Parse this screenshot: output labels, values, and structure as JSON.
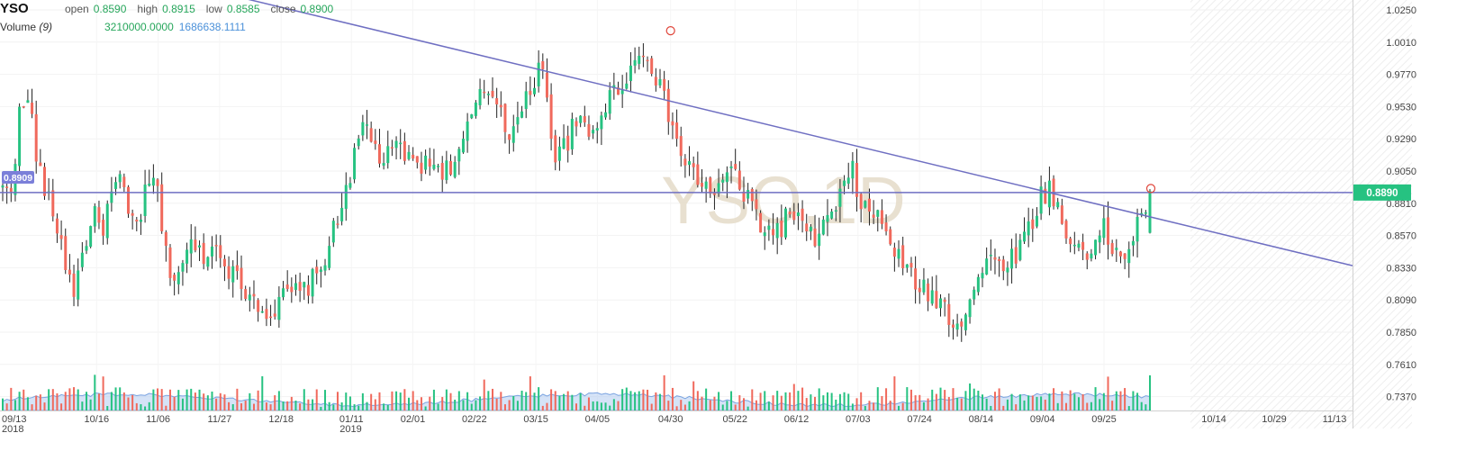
{
  "legend": {
    "symbol": "YSO",
    "open_label": "open",
    "open": "0.8590",
    "high_label": "high",
    "high": "0.8915",
    "low_label": "low",
    "low": "0.8585",
    "close_label": "close",
    "close": "0.8900",
    "volume_label": "Volume",
    "volume_period": "(9)",
    "volume_value": "3210000.0000",
    "volume_ma": "1686638.1111"
  },
  "watermark": "YSO,1D",
  "colors": {
    "up": "#26c281",
    "down": "#f0695c",
    "line": "#6f6fc2",
    "volume_area": "#b3ccf0"
  },
  "chart_data": {
    "type": "candlestick",
    "y_axis": {
      "min": 0.725,
      "max": 1.035,
      "tick_labels": [
        "1.0250",
        "1.0010",
        "0.9770",
        "0.9530",
        "0.9290",
        "0.9050",
        "0.8810",
        "0.8570",
        "0.8330",
        "0.8090",
        "0.7850",
        "0.7610",
        "0.7370"
      ]
    },
    "x_axis": {
      "tick_labels": [
        "09/13",
        "10/16",
        "11/06",
        "11/27",
        "12/18",
        "01/11",
        "02/01",
        "02/22",
        "03/15",
        "04/05",
        "04/30",
        "05/22",
        "06/12",
        "07/03",
        "07/24",
        "08/14",
        "09/04",
        "09/25",
        "10/14",
        "10/29",
        "11/13"
      ],
      "year_labels": [
        {
          "under": "09/13",
          "text": "2018"
        },
        {
          "under": "01/11",
          "text": "2019"
        }
      ]
    },
    "horizontal_line": {
      "value": 0.889
    },
    "trend_line": {
      "from": {
        "date": "2018-11-27",
        "price": 1.038
      },
      "to": {
        "date": "2019-11-13",
        "price": 0.8345
      },
      "markers": [
        {
          "date": "2019-04-30",
          "price": 1.0095
        },
        {
          "date": "2019-10-11",
          "price": 0.892
        }
      ]
    },
    "price_tags": [
      {
        "text": "0.8909",
        "value": 0.8909,
        "side": "left"
      },
      {
        "text": "0.8890",
        "value": 0.889,
        "side": "right"
      }
    ],
    "anchors": [
      0.89,
      0.895,
      0.955,
      0.955,
      0.905,
      0.883,
      0.865,
      0.835,
      0.815,
      0.85,
      0.872,
      0.862,
      0.886,
      0.898,
      0.868,
      0.867,
      0.892,
      0.898,
      0.842,
      0.826,
      0.838,
      0.85,
      0.843,
      0.847,
      0.849,
      0.834,
      0.822,
      0.817,
      0.809,
      0.803,
      0.798,
      0.81,
      0.815,
      0.813,
      0.822,
      0.826,
      0.85,
      0.865,
      0.895,
      0.915,
      0.942,
      0.926,
      0.912,
      0.916,
      0.925,
      0.911,
      0.913,
      0.908,
      0.912,
      0.905,
      0.913,
      0.924,
      0.948,
      0.96,
      0.966,
      0.955,
      0.934,
      0.941,
      0.957,
      0.978,
      0.985,
      0.912,
      0.921,
      0.935,
      0.94,
      0.93,
      0.946,
      0.958,
      0.966,
      0.977,
      0.985,
      0.997,
      0.983,
      0.96,
      0.943,
      0.918,
      0.906,
      0.899,
      0.89,
      0.892,
      0.897,
      0.909,
      0.884,
      0.88,
      0.864,
      0.86,
      0.862,
      0.873,
      0.872,
      0.855,
      0.855,
      0.866,
      0.873,
      0.89,
      0.906,
      0.882,
      0.872,
      0.87,
      0.857,
      0.842,
      0.83,
      0.824,
      0.815,
      0.812,
      0.807,
      0.795,
      0.792,
      0.81,
      0.825,
      0.837,
      0.839,
      0.837,
      0.843,
      0.854,
      0.869,
      0.887,
      0.893,
      0.873,
      0.848,
      0.853,
      0.846,
      0.851,
      0.862,
      0.843,
      0.842,
      0.853,
      0.87,
      0.89
    ]
  }
}
